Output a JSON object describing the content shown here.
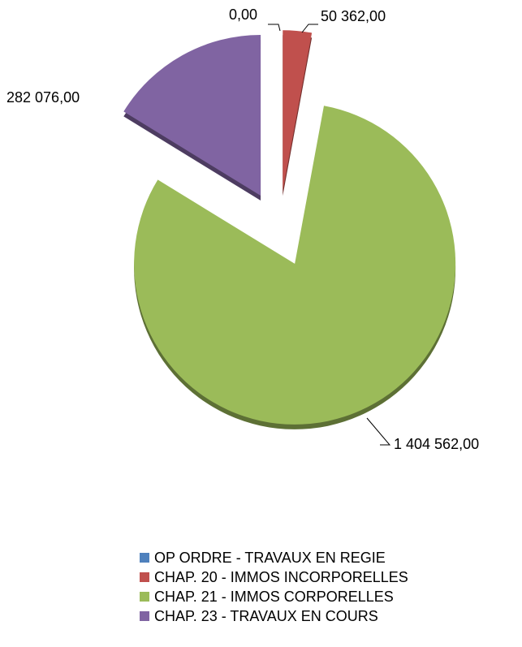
{
  "chart_data": {
    "type": "pie",
    "categories": [
      "OP ORDRE - TRAVAUX EN REGIE",
      "CHAP. 20 - IMMOS INCORPORELLES",
      "CHAP. 21 - IMMOS CORPORELLES",
      "CHAP. 23 - TRAVAUX EN COURS"
    ],
    "values": [
      0,
      50362,
      1404562,
      282076
    ],
    "value_labels": [
      "0,00",
      "50 362,00",
      "1 404 562,00",
      "282 076,00"
    ],
    "colors": [
      "#4f81bd",
      "#c0504d",
      "#9bbb59",
      "#8064a2"
    ],
    "legend": "bottom"
  }
}
